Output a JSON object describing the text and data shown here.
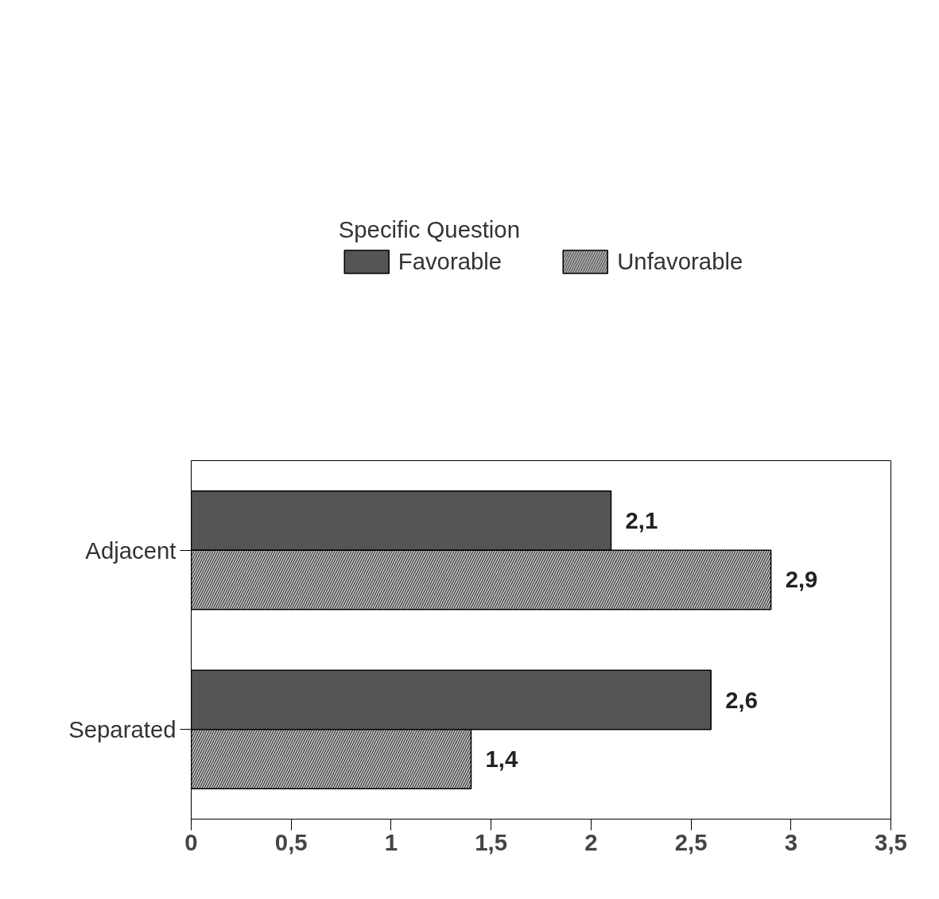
{
  "chart_data": {
    "type": "bar",
    "orientation": "horizontal",
    "legend_title": "Specific Question",
    "categories": [
      "Adjacent",
      "Separated"
    ],
    "series": [
      {
        "name": "Favorable",
        "color": "#555555",
        "values": [
          2.1,
          2.6
        ],
        "value_labels": [
          "2,1",
          "2,6"
        ]
      },
      {
        "name": "Unfavorable",
        "color": "#bdbdbd",
        "values": [
          2.9,
          1.4
        ],
        "value_labels": [
          "2,9",
          "1,4"
        ]
      }
    ],
    "xlim": [
      0,
      3.5
    ],
    "xticks": [
      0,
      {
        "value": 0.5,
        "label": "0,5"
      },
      1,
      {
        "value": 1.5,
        "label": "1,5"
      },
      2,
      {
        "value": 2.5,
        "label": "2,5"
      },
      3,
      {
        "value": 3.5,
        "label": "3,5"
      }
    ],
    "grid": false,
    "legend": "top"
  }
}
